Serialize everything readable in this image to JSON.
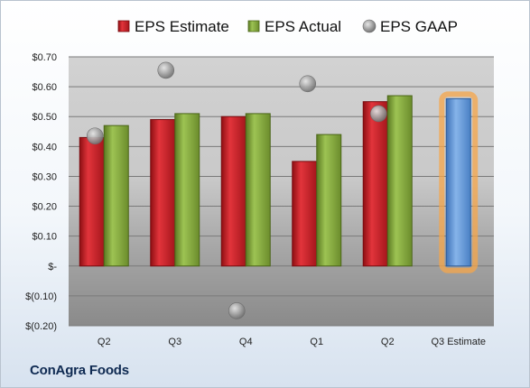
{
  "company": "ConAgra Foods",
  "colors": {
    "estimate": "#d22027",
    "actual": "#86ab3c",
    "gaap": "#9a9a9a",
    "forecast": "#6fa0da",
    "forecast_glow": "#f5a54a"
  },
  "chart_data": {
    "type": "bar",
    "categories": [
      "Q2",
      "Q3",
      "Q4",
      "Q1",
      "Q2",
      "Q3 Estimate"
    ],
    "series": [
      {
        "name": "EPS Estimate",
        "values": [
          0.43,
          0.49,
          0.5,
          0.35,
          0.55,
          null
        ]
      },
      {
        "name": "EPS Actual",
        "values": [
          0.47,
          0.51,
          0.51,
          0.44,
          0.57,
          0.56
        ]
      },
      {
        "name": "EPS GAAP",
        "type": "scatter",
        "values": [
          0.435,
          0.655,
          -0.15,
          0.61,
          0.51,
          null
        ]
      }
    ],
    "highlight": {
      "category": "Q3 Estimate",
      "series": "EPS Actual",
      "value": 0.56
    },
    "ylim": [
      -0.2,
      0.7
    ],
    "yticks": [
      {
        "value": 0.7,
        "label": "$0.70"
      },
      {
        "value": 0.6,
        "label": "$0.60"
      },
      {
        "value": 0.5,
        "label": "$0.50"
      },
      {
        "value": 0.4,
        "label": "$0.40"
      },
      {
        "value": 0.3,
        "label": "$0.30"
      },
      {
        "value": 0.2,
        "label": "$0.20"
      },
      {
        "value": 0.1,
        "label": "$0.10"
      },
      {
        "value": 0.0,
        "label": "$-"
      },
      {
        "value": -0.1,
        "label": "$(0.10)"
      },
      {
        "value": -0.2,
        "label": "$(0.20)"
      }
    ],
    "legend_position": "top",
    "grid": true
  }
}
